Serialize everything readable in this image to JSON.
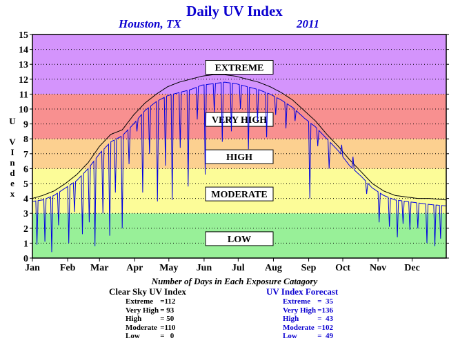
{
  "title": "Daily UV Index",
  "location": "Houston, TX",
  "year": "2011",
  "chart_data": {
    "type": "line",
    "ylabel": "U V Index",
    "ylim": [
      0,
      15
    ],
    "y_ticks": [
      "0",
      "1",
      "2",
      "3",
      "4",
      "5",
      "6",
      "7",
      "8",
      "9",
      "10",
      "11",
      "12",
      "13",
      "14",
      "15"
    ],
    "x_ticks": [
      "Jan",
      "Feb",
      "Mar",
      "Apr",
      "May",
      "Jun",
      "Jul",
      "Aug",
      "Sep",
      "Oct",
      "Nov",
      "Dec"
    ],
    "grid": true,
    "bands": [
      {
        "label": "LOW",
        "from": 0,
        "to": 3,
        "color": "#98f098",
        "label_y": 1.3
      },
      {
        "label": "MODERATE",
        "from": 3,
        "to": 6,
        "color": "#fcfc98",
        "label_y": 4.3
      },
      {
        "label": "HIGH",
        "from": 6,
        "to": 8,
        "color": "#fcd090",
        "label_y": 6.8
      },
      {
        "label": "VERY HIGH",
        "from": 8,
        "to": 11,
        "color": "#f89090",
        "label_y": 9.3
      },
      {
        "label": "EXTREME",
        "from": 11,
        "to": 15,
        "color": "#d494fc",
        "label_y": 12.8
      }
    ],
    "series": [
      {
        "color": "#000000",
        "x": [
          1,
          10,
          20,
          30,
          40,
          50,
          60,
          70,
          80,
          90,
          100,
          110,
          120,
          130,
          140,
          150,
          160,
          170,
          180,
          190,
          200,
          210,
          220,
          230,
          240,
          250,
          260,
          270,
          280,
          290,
          300,
          310,
          320,
          330,
          340,
          350,
          365
        ],
        "y": [
          4.0,
          4.2,
          4.5,
          5.0,
          5.6,
          6.4,
          7.5,
          8.3,
          8.6,
          9.6,
          10.4,
          11.0,
          11.5,
          11.8,
          12.0,
          12.2,
          12.3,
          12.3,
          12.2,
          12.0,
          11.8,
          11.5,
          11.1,
          10.6,
          9.9,
          9.2,
          8.3,
          7.5,
          6.6,
          5.8,
          5.0,
          4.5,
          4.2,
          4.1,
          4.0,
          4.0,
          3.9
        ]
      },
      {
        "color": "#0000e0",
        "x": [
          1,
          10,
          20,
          30,
          40,
          50,
          60,
          70,
          80,
          90,
          100,
          110,
          120,
          130,
          140,
          150,
          160,
          170,
          180,
          190,
          200,
          210,
          220,
          230,
          240,
          250,
          260,
          270,
          280,
          290,
          300,
          310,
          320,
          330,
          340,
          350,
          365
        ],
        "y": [
          3.8,
          3.9,
          4.2,
          4.7,
          5.2,
          6.0,
          7.0,
          7.8,
          8.2,
          9.0,
          9.9,
          10.5,
          10.9,
          11.1,
          11.3,
          11.6,
          11.7,
          11.8,
          11.7,
          11.5,
          11.3,
          11.0,
          10.6,
          10.1,
          9.4,
          8.8,
          8.0,
          7.2,
          6.2,
          5.5,
          4.7,
          4.2,
          3.9,
          3.8,
          3.7,
          3.6,
          3.5
        ],
        "dips": [
          [
            5,
            0.9
          ],
          [
            12,
            1.1
          ],
          [
            18,
            0.4
          ],
          [
            24,
            2.2
          ],
          [
            33,
            1.0
          ],
          [
            38,
            3.1
          ],
          [
            45,
            1.6
          ],
          [
            51,
            2.4
          ],
          [
            56,
            0.8
          ],
          [
            63,
            3.0
          ],
          [
            69,
            1.5
          ],
          [
            74,
            4.4
          ],
          [
            80,
            2.0
          ],
          [
            86,
            6.3
          ],
          [
            93,
            8.5
          ],
          [
            98,
            4.4
          ],
          [
            104,
            7.0
          ],
          [
            111,
            3.8
          ],
          [
            118,
            6.2
          ],
          [
            124,
            3.9
          ],
          [
            131,
            7.4
          ],
          [
            138,
            4.8
          ],
          [
            146,
            9.3
          ],
          [
            153,
            5.6
          ],
          [
            161,
            9.8
          ],
          [
            168,
            7.8
          ],
          [
            176,
            8.5
          ],
          [
            184,
            10.0
          ],
          [
            191,
            7.3
          ],
          [
            199,
            9.2
          ],
          [
            207,
            8.1
          ],
          [
            215,
            9.6
          ],
          [
            224,
            8.7
          ],
          [
            232,
            9.2
          ],
          [
            245,
            4.0
          ],
          [
            252,
            7.5
          ],
          [
            262,
            6.0
          ],
          [
            273,
            7.6
          ],
          [
            283,
            6.8
          ],
          [
            295,
            4.3
          ],
          [
            306,
            2.4
          ],
          [
            315,
            2.1
          ],
          [
            322,
            1.4
          ],
          [
            327,
            2.3
          ],
          [
            333,
            1.9
          ],
          [
            340,
            2.0
          ],
          [
            348,
            1.0
          ],
          [
            355,
            0.8
          ],
          [
            360,
            1.3
          ]
        ]
      }
    ],
    "stats_title": "Number of Days in Each Exposure Catagory",
    "clear_sky": {
      "heading": "Clear Sky UV Index",
      "rows": [
        [
          "Extreme",
          "=112"
        ],
        [
          "Very High",
          "= 93"
        ],
        [
          "High",
          "= 50"
        ],
        [
          "Moderate",
          "=110"
        ],
        [
          "Low",
          "=   0"
        ]
      ]
    },
    "forecast": {
      "heading": "UV Index Forecast",
      "rows": [
        [
          "Extreme",
          "=  35"
        ],
        [
          "Very High",
          "=136"
        ],
        [
          "High",
          "=  43"
        ],
        [
          "Moderate",
          "=102"
        ],
        [
          "Low",
          "=  49"
        ]
      ]
    }
  }
}
